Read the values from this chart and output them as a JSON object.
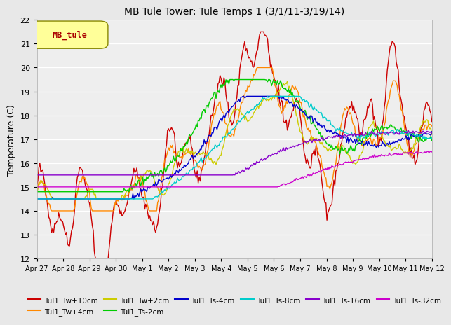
{
  "title": "MB Tule Tower: Tule Temps 1 (3/1/11-3/19/14)",
  "ylabel": "Temperature (C)",
  "ylim": [
    12.0,
    22.0
  ],
  "yticks": [
    12.0,
    13.0,
    14.0,
    15.0,
    16.0,
    17.0,
    18.0,
    19.0,
    20.0,
    21.0,
    22.0
  ],
  "bg_color": "#e8e8e8",
  "plot_bg_color": "#eeeeee",
  "legend_label": "MB_tule",
  "series_colors": {
    "Tul1_Tw+10cm": "#cc0000",
    "Tul1_Tw+4cm": "#ff8800",
    "Tul1_Tw+2cm": "#cccc00",
    "Tul1_Ts-2cm": "#00cc00",
    "Tul1_Ts-4cm": "#0000cc",
    "Tul1_Ts-8cm": "#00cccc",
    "Tul1_Ts-16cm": "#8800cc",
    "Tul1_Ts-32cm": "#cc00cc"
  },
  "xtick_labels": [
    "Apr 27",
    "Apr 28",
    "Apr 29",
    "Apr 30",
    "May 1",
    "May 2",
    "May 3",
    "May 4",
    "May 5",
    "May 6",
    "May 7",
    "May 8",
    "May 9",
    "May 10",
    "May 11",
    "May 12"
  ]
}
